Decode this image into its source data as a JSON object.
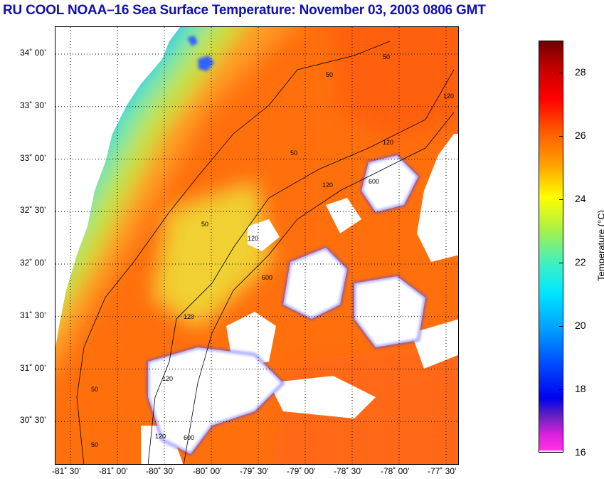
{
  "title": "RU COOL  NOAA–16  Sea Surface Temperature:  November 03, 2003 0806 GMT",
  "map": {
    "lat_ticks": [
      {
        "value": 34.0,
        "label": "34˚ 00’"
      },
      {
        "value": 33.5,
        "label": "33˚ 30’"
      },
      {
        "value": 33.0,
        "label": "33˚ 00’"
      },
      {
        "value": 32.5,
        "label": "32˚ 30’"
      },
      {
        "value": 32.0,
        "label": "32˚ 00’"
      },
      {
        "value": 31.5,
        "label": "31˚ 30’"
      },
      {
        "value": 31.0,
        "label": "31˚ 00’"
      },
      {
        "value": 30.5,
        "label": "30˚ 30’"
      }
    ],
    "lon_ticks": [
      {
        "value": -81.5,
        "label": "-81˚ 30’"
      },
      {
        "value": -81.0,
        "label": "-81˚ 00’"
      },
      {
        "value": -80.5,
        "label": "-80˚ 30’"
      },
      {
        "value": -80.0,
        "label": "-80˚ 00’"
      },
      {
        "value": -79.5,
        "label": "-79˚ 30’"
      },
      {
        "value": -79.0,
        "label": "-79˚ 00’"
      },
      {
        "value": -78.5,
        "label": "-78˚ 30’"
      },
      {
        "value": -78.0,
        "label": "-78˚ 00’"
      },
      {
        "value": -77.5,
        "label": "-77˚ 30’"
      }
    ],
    "contour_labels": [
      "50",
      "50",
      "50",
      "50",
      "120",
      "120",
      "120",
      "120",
      "120",
      "120",
      "600",
      "600",
      "600",
      "50",
      "50",
      "120"
    ]
  },
  "colorbar": {
    "label": "Temperature (°C)",
    "min": 16,
    "max": 29,
    "ticks": [
      {
        "value": 28,
        "label": "28"
      },
      {
        "value": 26,
        "label": "26"
      },
      {
        "value": 24,
        "label": "24"
      },
      {
        "value": 22,
        "label": "22"
      },
      {
        "value": 20,
        "label": "20"
      },
      {
        "value": 18,
        "label": "18"
      },
      {
        "value": 16,
        "label": "16"
      }
    ]
  }
}
